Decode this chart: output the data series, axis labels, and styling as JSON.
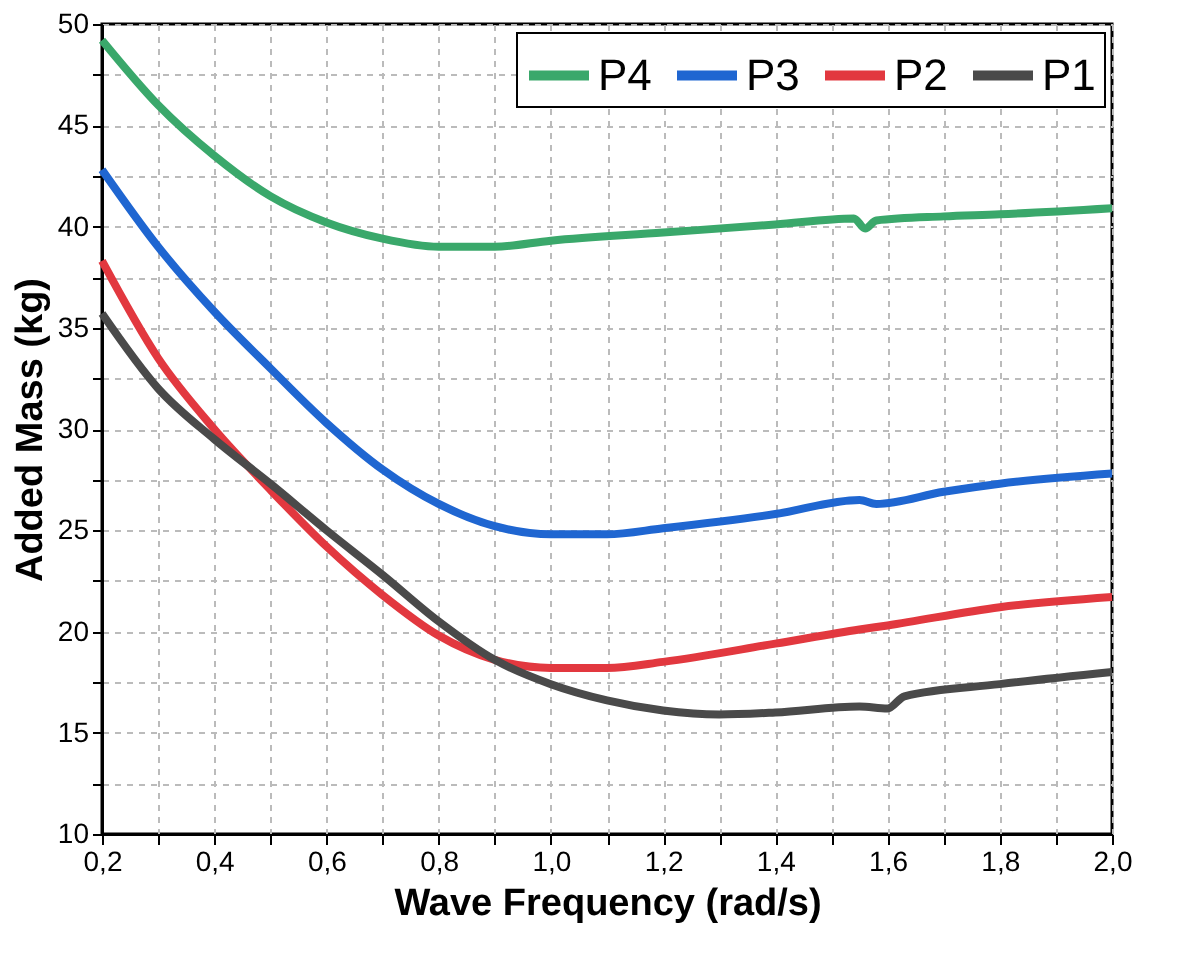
{
  "chart_data": {
    "type": "line",
    "xlabel": "Wave Frequency (rad/s)",
    "ylabel": "Added Mass (kg)",
    "xlim": [
      0.2,
      2.0
    ],
    "ylim": [
      10,
      50
    ],
    "xticks": [
      {
        "value": 0.2,
        "label": "0,2"
      },
      {
        "value": 0.3,
        "label": null
      },
      {
        "value": 0.4,
        "label": "0,4"
      },
      {
        "value": 0.5,
        "label": null
      },
      {
        "value": 0.6,
        "label": "0,6"
      },
      {
        "value": 0.7,
        "label": null
      },
      {
        "value": 0.8,
        "label": "0,8"
      },
      {
        "value": 0.9,
        "label": null
      },
      {
        "value": 1.0,
        "label": "1,0"
      },
      {
        "value": 1.1,
        "label": null
      },
      {
        "value": 1.2,
        "label": "1,2"
      },
      {
        "value": 1.3,
        "label": null
      },
      {
        "value": 1.4,
        "label": "1,4"
      },
      {
        "value": 1.5,
        "label": null
      },
      {
        "value": 1.6,
        "label": "1,6"
      },
      {
        "value": 1.7,
        "label": null
      },
      {
        "value": 1.8,
        "label": "1,8"
      },
      {
        "value": 1.9,
        "label": null
      },
      {
        "value": 2.0,
        "label": "2,0"
      }
    ],
    "yticks": [
      10,
      {
        "value": 12.5,
        "label": null
      },
      15,
      {
        "value": 17.5,
        "label": null
      },
      20,
      {
        "value": 22.5,
        "label": null
      },
      25,
      {
        "value": 27.5,
        "label": null
      },
      30,
      {
        "value": 32.5,
        "label": null
      },
      35,
      {
        "value": 37.5,
        "label": null
      },
      40,
      {
        "value": 42.5,
        "label": null
      },
      45,
      {
        "value": 47.5,
        "label": null
      },
      50
    ],
    "grid": true,
    "legend": "top right",
    "line_style": "solid",
    "marker": "none",
    "series": [
      {
        "name": "P4",
        "color": "#3aa86b",
        "x": [
          0.2,
          0.3,
          0.4,
          0.5,
          0.6,
          0.7,
          0.8,
          0.9,
          1.0,
          1.2,
          1.4,
          1.54,
          1.56,
          1.58,
          1.7,
          1.8,
          2.0
        ],
        "values": [
          49.2,
          46,
          43.5,
          41.5,
          40.2,
          39.4,
          39.0,
          39.0,
          39.3,
          39.7,
          40.1,
          40.4,
          39.9,
          40.3,
          40.5,
          40.6,
          40.9
        ]
      },
      {
        "name": "P3",
        "color": "#1f66d1",
        "x": [
          0.2,
          0.3,
          0.4,
          0.5,
          0.6,
          0.7,
          0.8,
          0.9,
          1.0,
          1.1,
          1.2,
          1.4,
          1.55,
          1.58,
          1.7,
          1.8,
          2.0
        ],
        "values": [
          42.8,
          39,
          35.8,
          33,
          30.3,
          28,
          26.3,
          25.2,
          24.8,
          24.8,
          25.1,
          25.8,
          26.5,
          26.3,
          26.9,
          27.3,
          27.8
        ]
      },
      {
        "name": "P2",
        "color": "#e2383f",
        "x": [
          0.2,
          0.3,
          0.4,
          0.5,
          0.6,
          0.7,
          0.8,
          0.9,
          1.0,
          1.1,
          1.2,
          1.4,
          1.55,
          1.6,
          1.8,
          2.0
        ],
        "values": [
          38.3,
          33.5,
          30,
          27,
          24.2,
          21.8,
          19.8,
          18.6,
          18.2,
          18.2,
          18.5,
          19.4,
          20.1,
          20.3,
          21.2,
          21.7
        ]
      },
      {
        "name": "P1",
        "color": "#4a4a4a",
        "x": [
          0.2,
          0.3,
          0.4,
          0.5,
          0.6,
          0.7,
          0.8,
          0.9,
          1.0,
          1.1,
          1.2,
          1.3,
          1.4,
          1.55,
          1.6,
          1.63,
          1.8,
          2.0
        ],
        "values": [
          35.7,
          32,
          29.5,
          27.3,
          25,
          22.8,
          20.5,
          18.6,
          17.4,
          16.6,
          16.1,
          15.9,
          16.0,
          16.3,
          16.2,
          16.8,
          17.4,
          18.0
        ]
      }
    ]
  }
}
